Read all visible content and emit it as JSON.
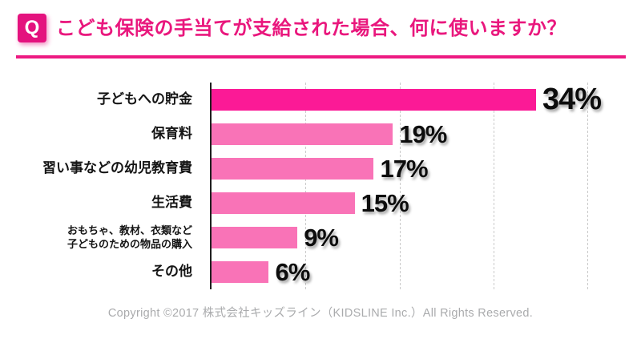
{
  "header": {
    "q_label": "Q",
    "title": "こども保険の手当てが支給された場合、何に使いますか？",
    "accent_color": "#e9177d"
  },
  "chart_data": {
    "type": "bar",
    "orientation": "horizontal",
    "title": "こども保険の手当てが支給された場合、何に使いますか？",
    "categories": [
      "子どもへの貯金",
      "保育料",
      "習い事などの幼児教育費",
      "生活費",
      "おもちゃ、教材、衣類など 子どものための物品の購入",
      "その他"
    ],
    "category_lines": [
      [
        "子どもへの貯金"
      ],
      [
        "保育料"
      ],
      [
        "習い事などの幼児教育費"
      ],
      [
        "生活費"
      ],
      [
        "おもちゃ、教材、衣類など",
        "子どものための物品の購入"
      ],
      [
        "その他"
      ]
    ],
    "values": [
      34,
      19,
      17,
      15,
      9,
      6
    ],
    "value_labels": [
      "34%",
      "19%",
      "17%",
      "15%",
      "9%",
      "6%"
    ],
    "unit": "%",
    "xlim": [
      0,
      45
    ],
    "gridlines": [
      10,
      20,
      30,
      40
    ],
    "grid": "dashed-vertical",
    "legend": "none",
    "highlight_bar_color": "#fb1a96",
    "bar_color": "#f973b7",
    "axis_color": "#1f1f1f"
  },
  "footer": {
    "copyright": "Copyright ©2017 株式会社キッズライン（KIDSLINE Inc.）All Rights Reserved."
  }
}
